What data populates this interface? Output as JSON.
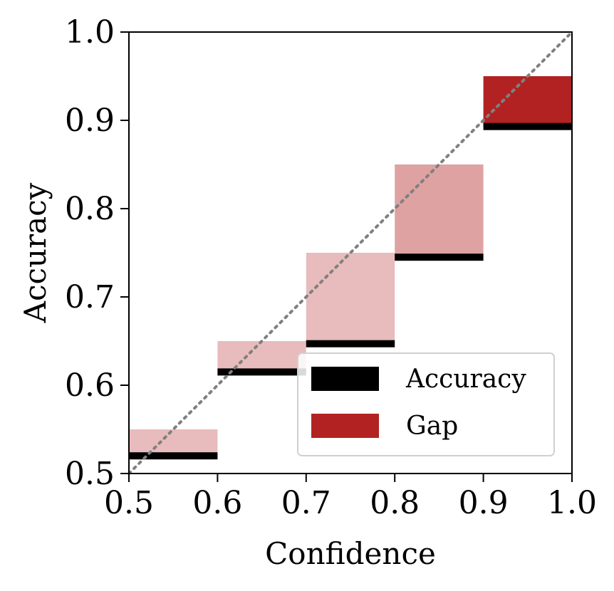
{
  "chart_data": {
    "type": "reliability-diagram",
    "xlabel": "Confidence",
    "ylabel": "Accuracy",
    "xlim": [
      0.5,
      1.0
    ],
    "ylim": [
      0.5,
      1.0
    ],
    "xticks": [
      "0.5",
      "0.6",
      "0.7",
      "0.8",
      "0.9",
      "1.0"
    ],
    "yticks": [
      "0.5",
      "0.6",
      "0.7",
      "0.8",
      "0.9",
      "1.0"
    ],
    "xtick_values": [
      0.5,
      0.6,
      0.7,
      0.8,
      0.9,
      1.0
    ],
    "ytick_values": [
      0.5,
      0.6,
      0.7,
      0.8,
      0.9,
      1.0
    ],
    "bins": [
      {
        "bin_start": 0.5,
        "bin_end": 0.6,
        "accuracy": 0.52,
        "confidence": 0.55,
        "gap_opacity": 0.3
      },
      {
        "bin_start": 0.6,
        "bin_end": 0.7,
        "accuracy": 0.615,
        "confidence": 0.65,
        "gap_opacity": 0.3
      },
      {
        "bin_start": 0.7,
        "bin_end": 0.8,
        "accuracy": 0.647,
        "confidence": 0.75,
        "gap_opacity": 0.3
      },
      {
        "bin_start": 0.8,
        "bin_end": 0.9,
        "accuracy": 0.745,
        "confidence": 0.85,
        "gap_opacity": 0.42
      },
      {
        "bin_start": 0.9,
        "bin_end": 1.0,
        "accuracy": 0.893,
        "confidence": 0.95,
        "gap_opacity": 1.0
      }
    ],
    "diagonal": {
      "from": [
        0.5,
        0.5
      ],
      "to": [
        1.0,
        1.0
      ],
      "style": "dotted",
      "color": "#808080"
    },
    "legend": {
      "position": "lower-right",
      "entries": [
        {
          "label": "Accuracy",
          "color": "#000000"
        },
        {
          "label": "Gap",
          "color": "#b22222"
        }
      ]
    },
    "colors": {
      "accuracy": "#000000",
      "gap": "#b22222",
      "diagonal": "#808080"
    }
  }
}
